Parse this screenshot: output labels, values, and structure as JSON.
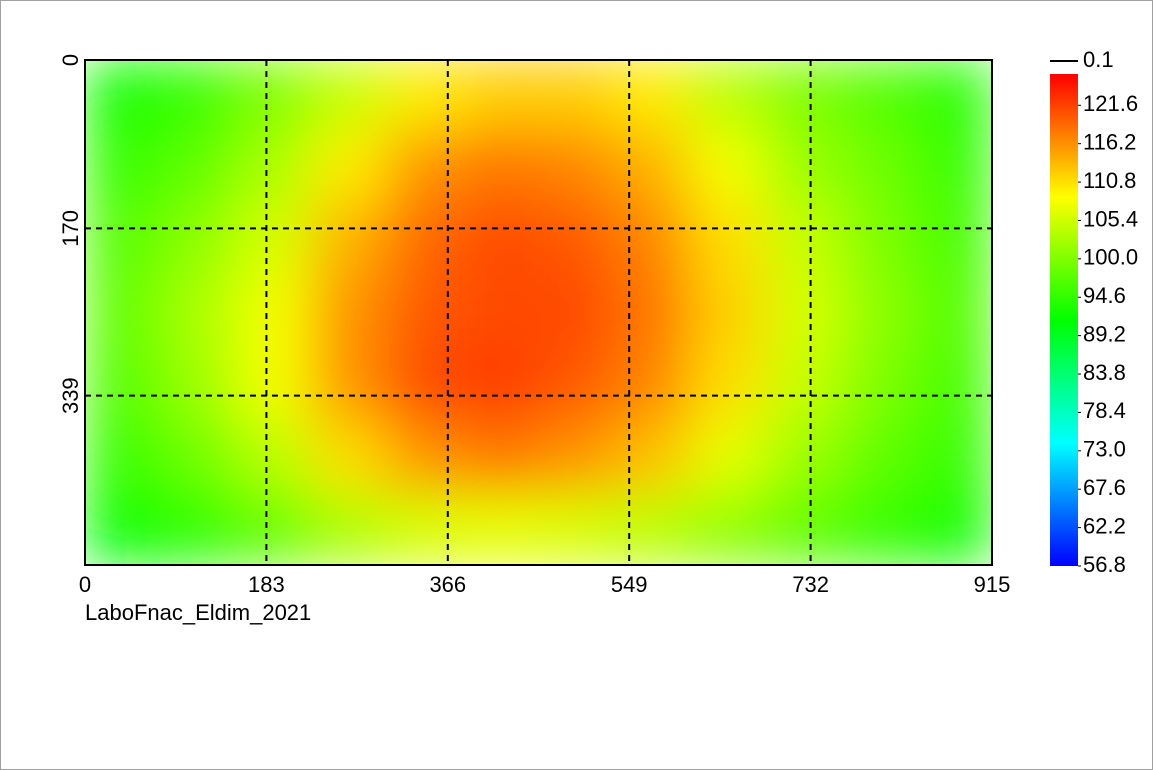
{
  "chart_data": {
    "type": "heatmap",
    "caption": "LaboFnac_Eldim_2021",
    "xlim": [
      0,
      915
    ],
    "xticks": [
      0,
      183,
      366,
      549,
      732,
      915
    ],
    "ylim": [
      0,
      510
    ],
    "yticks": [
      0,
      170,
      339
    ],
    "grid": true,
    "x": [
      38,
      114,
      191,
      267,
      343,
      419,
      496,
      572,
      648,
      724,
      801,
      877
    ],
    "y": [
      36,
      109,
      182,
      255,
      328,
      401,
      474
    ],
    "z": [
      [
        92,
        95,
        100,
        105,
        110,
        112,
        112,
        110,
        104,
        100,
        97,
        94
      ],
      [
        95,
        98,
        103,
        110,
        116,
        118,
        117,
        114,
        108,
        102,
        99,
        95
      ],
      [
        97,
        101,
        106,
        114,
        119,
        121,
        120,
        117,
        111,
        105,
        100,
        96
      ],
      [
        98,
        103,
        108,
        116,
        120,
        121,
        121,
        118,
        112,
        106,
        101,
        97
      ],
      [
        97,
        102,
        108,
        116,
        121,
        122,
        120,
        117,
        111,
        105,
        100,
        96
      ],
      [
        95,
        99,
        104,
        111,
        116,
        118,
        116,
        113,
        107,
        102,
        98,
        95
      ],
      [
        91,
        94,
        98,
        103,
        106,
        107,
        106,
        104,
        101,
        98,
        95,
        92
      ]
    ],
    "clim": [
      56.8,
      126
    ],
    "colormap": [
      "#0000ff",
      "#00ffff",
      "#00ff00",
      "#ffff00",
      "#ff0000"
    ],
    "cticks": [
      121.6,
      116.2,
      110.8,
      105.4,
      {
        "value": 100,
        "label": "100.0"
      },
      94.6,
      89.2,
      83.8,
      78.4,
      {
        "value": 73,
        "label": "73.0"
      },
      67.6,
      62.2,
      56.8
    ],
    "contour_level": 0.1
  }
}
